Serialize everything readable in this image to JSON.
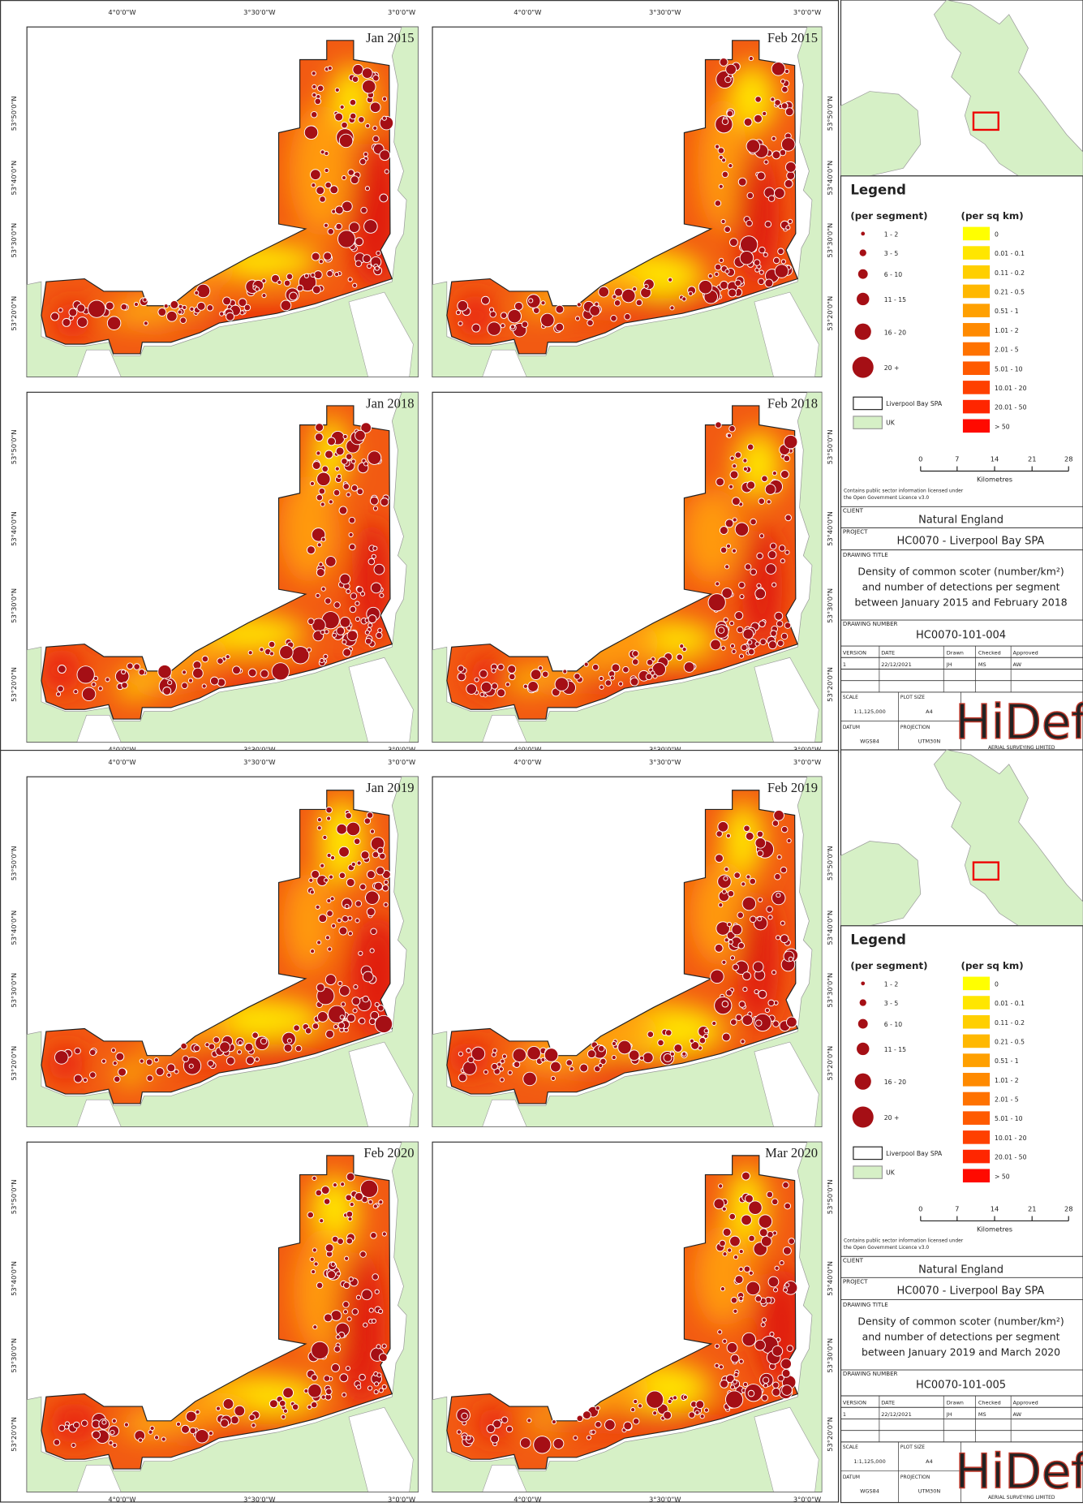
{
  "sheets": [
    {
      "panels": [
        "Jan 2015",
        "Feb 2015",
        "Jan 2018",
        "Feb 2018"
      ],
      "drawing_title": [
        "Density of common scoter (number/km²)",
        "and number of detections per segment",
        "between January 2015 and February 2018"
      ],
      "drawing_number": "HC0070-101-004"
    },
    {
      "panels": [
        "Jan 2019",
        "Feb 2019",
        "Feb 2020",
        "Mar 2020"
      ],
      "drawing_title": [
        "Density of common scoter (number/km²)",
        "and number of detections per segment",
        "between January 2019 and March 2020"
      ],
      "drawing_number": "HC0070-101-005"
    }
  ],
  "lon_labels": [
    "4°0'0\"W",
    "3°30'0\"W",
    "3°0'0\"W"
  ],
  "lat_labels": [
    "53°50'0\"N",
    "53°40'0\"N",
    "53°30'0\"N",
    "53°20'0\"N"
  ],
  "legend": {
    "title": "Legend",
    "segment_heading": "(per segment)",
    "segment_classes": [
      "1 - 2",
      "3 - 5",
      "6 - 10",
      "11 - 15",
      "16 - 20",
      "20 +"
    ],
    "density_heading": "(per sq km)",
    "density_classes": [
      "0",
      "0.01 - 0.1",
      "0.11 - 0.2",
      "0.21 - 0.5",
      "0.51 - 1",
      "1.01 - 2",
      "2.01 - 5",
      "5.01 - 10",
      "10.01 - 20",
      "20.01 - 50",
      "> 50"
    ],
    "spa": "Liverpool Bay SPA",
    "uk": "UK",
    "scale_labels": [
      "0",
      "7",
      "14",
      "21",
      "28"
    ],
    "scale_unit": "Kilometres"
  },
  "title_block": {
    "credit": [
      "Contains public sector information licensed under",
      "the Open Government Licence v3.0"
    ],
    "client_label": "CLIENT",
    "client": "Natural England",
    "project_label": "PROJECT",
    "project": "HC0070 - Liverpool Bay SPA",
    "drawing_title_label": "DRAWING TITLE",
    "drawing_number_label": "DRAWING NUMBER",
    "table_headers": [
      "VERSION",
      "DATE",
      "Drawn",
      "Checked",
      "Approved"
    ],
    "table_row": [
      "1",
      "22/12/2021",
      "JH",
      "MS",
      "AW"
    ],
    "scale_label": "SCALE",
    "scale": "1:1,125,000",
    "plot_size_label": "PLOT SIZE",
    "plot_size": "A4",
    "datum_label": "DATUM",
    "datum": "WGS84",
    "projection_label": "PROJECTION",
    "projection": "UTM30N",
    "logo": "HiDef",
    "logo_sub": "AERIAL SURVEYING LIMITED"
  }
}
